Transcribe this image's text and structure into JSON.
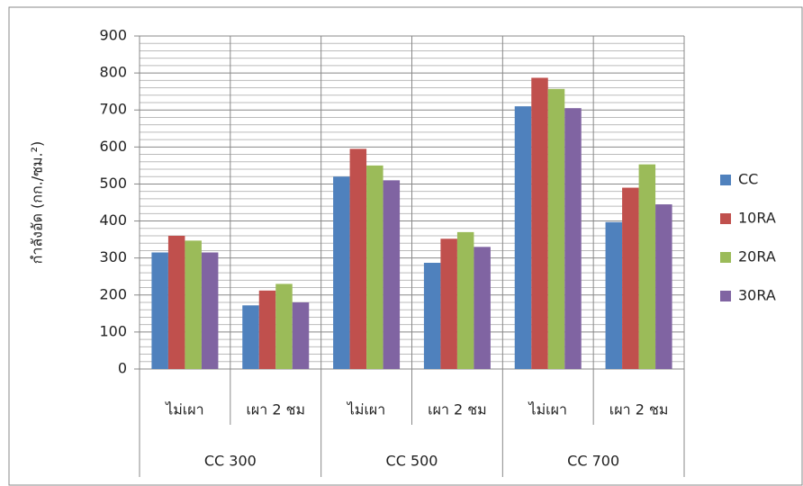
{
  "chart_data": {
    "type": "bar",
    "y_label": "กำลังอัด (กก./ซม.²)",
    "groups": [
      {
        "name": "CC 300",
        "categories": [
          "ไม่เผา",
          "เผา 2 ชม"
        ]
      },
      {
        "name": "CC 500",
        "categories": [
          "ไม่เผา",
          "เผา 2 ชม"
        ]
      },
      {
        "name": "CC 700",
        "categories": [
          "ไม่เผา",
          "เผา 2 ชม"
        ]
      }
    ],
    "series": [
      {
        "name": "CC",
        "color": "#4f81bd",
        "values": [
          315,
          172,
          520,
          287,
          710,
          397
        ]
      },
      {
        "name": "10RA",
        "color": "#c0504d",
        "values": [
          360,
          212,
          595,
          352,
          787,
          490
        ]
      },
      {
        "name": "20RA",
        "color": "#9bbb59",
        "values": [
          347,
          230,
          550,
          370,
          757,
          553
        ]
      },
      {
        "name": "30RA",
        "color": "#8064a2",
        "values": [
          315,
          180,
          510,
          330,
          705,
          445
        ]
      }
    ],
    "ylim": [
      0,
      900
    ],
    "yticks": [
      0,
      100,
      200,
      300,
      400,
      500,
      600,
      700,
      800,
      900
    ],
    "minor_yticks": [
      20,
      40,
      60,
      80,
      120,
      140,
      160,
      180,
      220,
      240,
      260,
      280,
      320,
      340,
      360,
      380,
      420,
      440,
      460,
      480,
      520,
      540,
      560,
      580,
      620,
      640,
      660,
      680,
      720,
      740,
      760,
      780,
      820,
      840,
      860,
      880
    ],
    "grid": true,
    "legend": "right"
  }
}
